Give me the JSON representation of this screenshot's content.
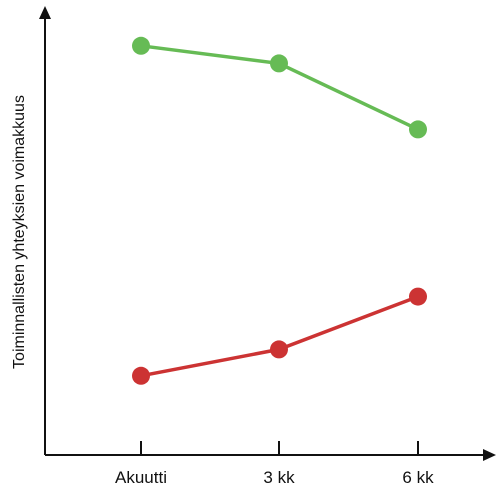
{
  "chart_data": {
    "type": "line",
    "categories": [
      "Akuutti",
      "3 kk",
      "6 kk"
    ],
    "ylabel": "Toiminnallisten yhteyksien voimakkuus",
    "xlabel": "",
    "ylim": [
      0,
      100
    ],
    "grid": false,
    "series": [
      {
        "values": [
          93,
          89,
          74
        ],
        "color": "#66bb55"
      },
      {
        "values": [
          18,
          24,
          36
        ],
        "color": "#cc3333"
      }
    ]
  }
}
